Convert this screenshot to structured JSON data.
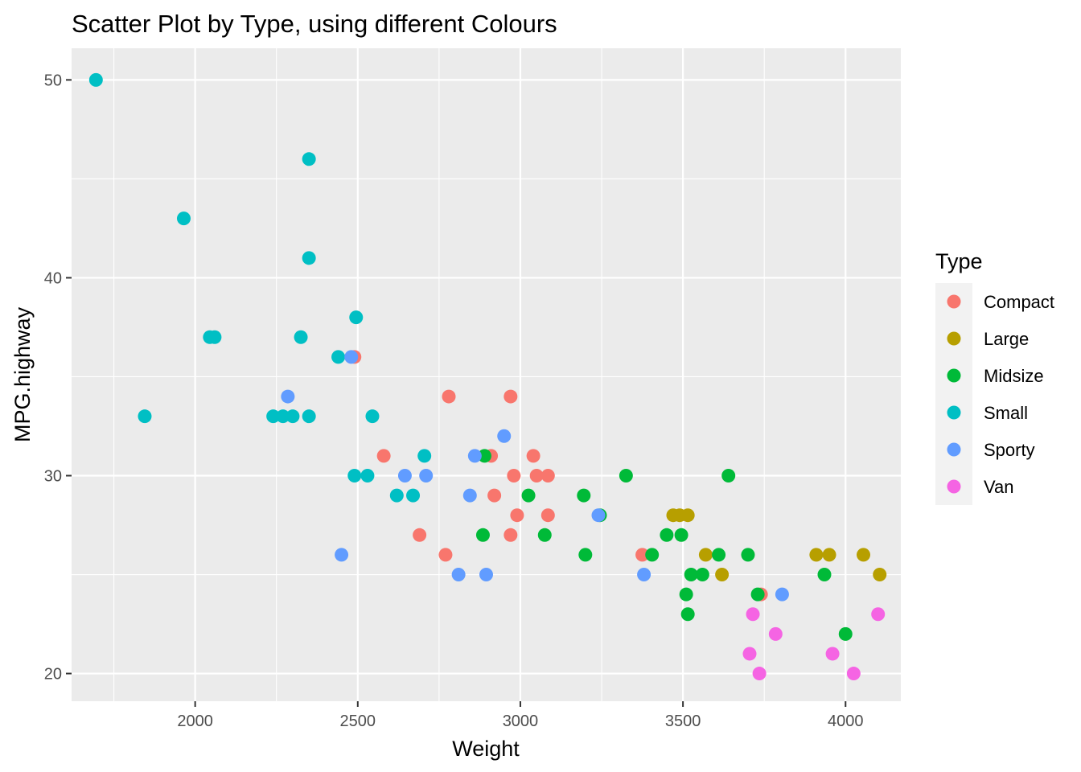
{
  "chart_data": {
    "type": "scatter",
    "title": "Scatter Plot by Type, using different Colours",
    "xlabel": "Weight",
    "ylabel": "MPG.highway",
    "xlim": [
      1620,
      4170
    ],
    "ylim": [
      18.6,
      51.6
    ],
    "x_ticks": [
      2000,
      2500,
      3000,
      3500,
      4000
    ],
    "y_ticks": [
      20,
      30,
      40,
      50
    ],
    "x_tick_labels": [
      "2000",
      "2500",
      "3000",
      "3500",
      "4000"
    ],
    "y_tick_labels": [
      "20",
      "30",
      "40",
      "50"
    ],
    "grid": true,
    "panel_background": "#ebebeb",
    "legend": {
      "title": "Type",
      "position": "right"
    },
    "series": [
      {
        "name": "Compact",
        "color": "#F8766D",
        "points": [
          [
            2490,
            36
          ],
          [
            2580,
            31
          ],
          [
            2690,
            27
          ],
          [
            2780,
            34
          ],
          [
            2770,
            26
          ],
          [
            2910,
            31
          ],
          [
            2920,
            29
          ],
          [
            2970,
            34
          ],
          [
            2980,
            30
          ],
          [
            2990,
            28
          ],
          [
            2970,
            27
          ],
          [
            3040,
            31
          ],
          [
            3050,
            30
          ],
          [
            3085,
            30
          ],
          [
            3085,
            28
          ],
          [
            3375,
            26
          ],
          [
            3740,
            24
          ]
        ]
      },
      {
        "name": "Large",
        "color": "#B79F00",
        "points": [
          [
            3470,
            28
          ],
          [
            3490,
            28
          ],
          [
            3515,
            28
          ],
          [
            3570,
            26
          ],
          [
            3620,
            25
          ],
          [
            3910,
            26
          ],
          [
            3950,
            26
          ],
          [
            4055,
            26
          ],
          [
            4105,
            25
          ]
        ]
      },
      {
        "name": "Midsize",
        "color": "#00BA38",
        "points": [
          [
            2890,
            31
          ],
          [
            2885,
            27
          ],
          [
            3025,
            29
          ],
          [
            3075,
            27
          ],
          [
            3195,
            29
          ],
          [
            3200,
            26
          ],
          [
            3245,
            28
          ],
          [
            3325,
            30
          ],
          [
            3405,
            26
          ],
          [
            3450,
            27
          ],
          [
            3495,
            27
          ],
          [
            3510,
            24
          ],
          [
            3515,
            23
          ],
          [
            3525,
            25
          ],
          [
            3560,
            25
          ],
          [
            3610,
            26
          ],
          [
            3640,
            30
          ],
          [
            3700,
            26
          ],
          [
            3730,
            24
          ],
          [
            3935,
            25
          ],
          [
            4000,
            22
          ]
        ]
      },
      {
        "name": "Small",
        "color": "#00BFC4",
        "points": [
          [
            1695,
            50
          ],
          [
            1845,
            33
          ],
          [
            1965,
            43
          ],
          [
            2045,
            37
          ],
          [
            2060,
            37
          ],
          [
            2240,
            33
          ],
          [
            2270,
            33
          ],
          [
            2300,
            33
          ],
          [
            2325,
            37
          ],
          [
            2350,
            46
          ],
          [
            2350,
            41
          ],
          [
            2350,
            33
          ],
          [
            2440,
            36
          ],
          [
            2490,
            30
          ],
          [
            2495,
            38
          ],
          [
            2530,
            30
          ],
          [
            2545,
            33
          ],
          [
            2620,
            29
          ],
          [
            2670,
            29
          ],
          [
            2705,
            31
          ]
        ]
      },
      {
        "name": "Sporty",
        "color": "#619CFF",
        "points": [
          [
            2285,
            34
          ],
          [
            2450,
            26
          ],
          [
            2480,
            36
          ],
          [
            2645,
            30
          ],
          [
            2710,
            30
          ],
          [
            2810,
            25
          ],
          [
            2845,
            29
          ],
          [
            2860,
            31
          ],
          [
            2895,
            25
          ],
          [
            2950,
            32
          ],
          [
            3240,
            28
          ],
          [
            3380,
            25
          ],
          [
            3805,
            24
          ]
        ]
      },
      {
        "name": "Van",
        "color": "#F564E3",
        "points": [
          [
            3705,
            21
          ],
          [
            3715,
            23
          ],
          [
            3735,
            20
          ],
          [
            3785,
            22
          ],
          [
            3960,
            21
          ],
          [
            4025,
            20
          ],
          [
            4100,
            23
          ]
        ]
      }
    ]
  }
}
